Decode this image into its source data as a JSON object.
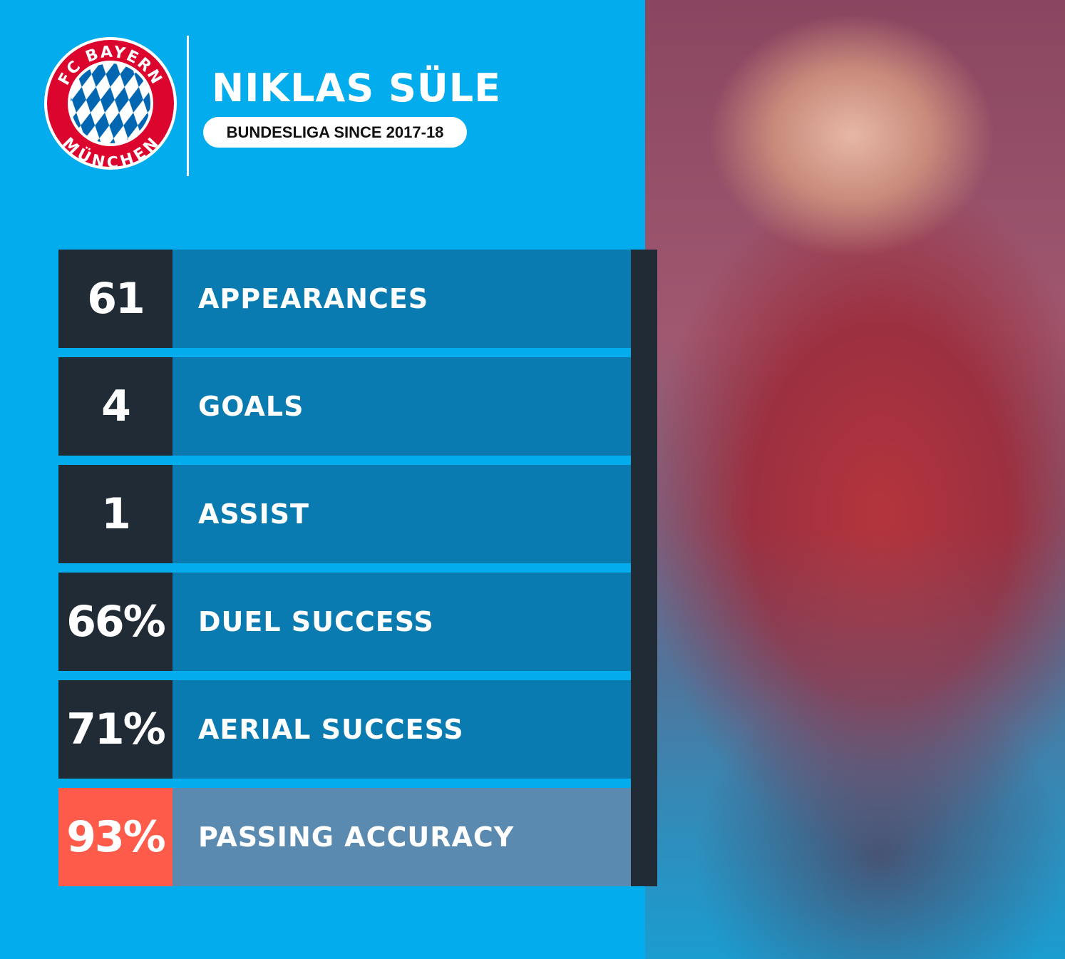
{
  "header": {
    "club_logo": {
      "text_top": "FC BAYERN",
      "text_bottom": "MÜNCHEN",
      "colors": {
        "ring": "#dc052d",
        "blue": "#0066b2",
        "white": "#ffffff"
      }
    },
    "player_name": "NIKLAS SÜLE",
    "subtitle": "BUNDESLIGA SINCE 2017-18"
  },
  "stats": [
    {
      "value": "61",
      "label": "APPEARANCES",
      "highlight": false
    },
    {
      "value": "4",
      "label": "GOALS",
      "highlight": false
    },
    {
      "value": "1",
      "label": "ASSIST",
      "highlight": false
    },
    {
      "value": "66%",
      "label": "DUEL SUCCESS",
      "highlight": false
    },
    {
      "value": "71%",
      "label": "AERIAL SUCCESS",
      "highlight": false
    },
    {
      "value": "93%",
      "label": "PASSING ACCURACY",
      "highlight": true
    }
  ],
  "colors": {
    "background": "#03acec",
    "dark": "#212b35",
    "row": "#0a7bb0",
    "highlight_value": "#ff5b4a",
    "highlight_row": "#5b8ab0"
  },
  "photo": {
    "subject": "player-celebrating-photo"
  }
}
